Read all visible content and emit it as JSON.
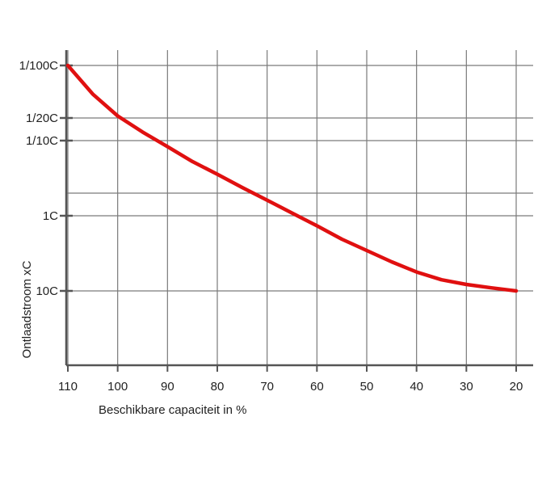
{
  "chart_data": {
    "type": "line",
    "title": "",
    "xlabel": "Beschikbare capaciteit in %",
    "ylabel": "Ontlaadstroom xC",
    "x_ticks": [
      110,
      100,
      90,
      80,
      70,
      60,
      50,
      40,
      30,
      20
    ],
    "x_tick_labels": [
      "110",
      "100",
      "90",
      "80",
      "70",
      "60",
      "50",
      "40",
      "30",
      "20"
    ],
    "xlim": [
      110,
      20
    ],
    "x_reversed": true,
    "y_scale": "log",
    "y_ticks": [
      0.01,
      0.05,
      0.1,
      1,
      10
    ],
    "y_tick_labels": [
      "1/100C",
      "1/20C",
      "1/10C",
      "1C",
      "10C"
    ],
    "y_extra_gridlines": [
      0.5
    ],
    "ylim": [
      0.01,
      100
    ],
    "y_reversed": true,
    "grid": true,
    "legend": "none",
    "series": [
      {
        "color": "#e01010",
        "x": [
          110,
          105,
          100,
          95,
          90,
          85,
          80,
          75,
          70,
          65,
          60,
          55,
          50,
          45,
          40,
          35,
          30,
          25,
          20
        ],
        "y": [
          0.01,
          0.024,
          0.047,
          0.077,
          0.12,
          0.19,
          0.28,
          0.42,
          0.62,
          0.92,
          1.36,
          2.05,
          2.9,
          4.1,
          5.6,
          7.1,
          8.2,
          9.1,
          10
        ]
      }
    ]
  }
}
